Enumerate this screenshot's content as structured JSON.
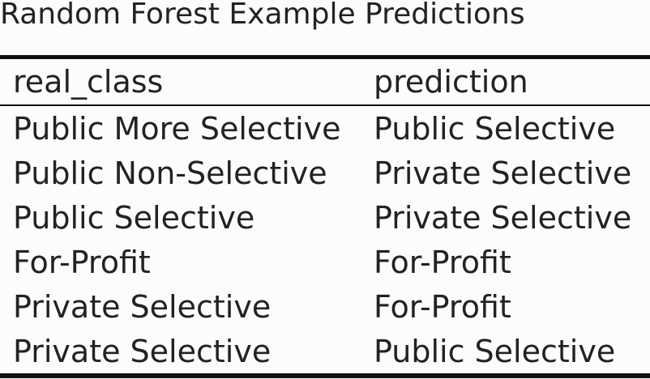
{
  "title": "Random Forest Example Predictions",
  "columns": [
    "real_class",
    "prediction"
  ],
  "rows": [
    [
      "Public More Selective",
      "Public Selective"
    ],
    [
      "Public Non-Selective",
      "Private Selective"
    ],
    [
      "Public Selective",
      "Private Selective"
    ],
    [
      "For-Profit",
      "For-Profit"
    ],
    [
      "Private Selective",
      "For-Profit"
    ],
    [
      "Private Selective",
      "Public Selective"
    ]
  ]
}
